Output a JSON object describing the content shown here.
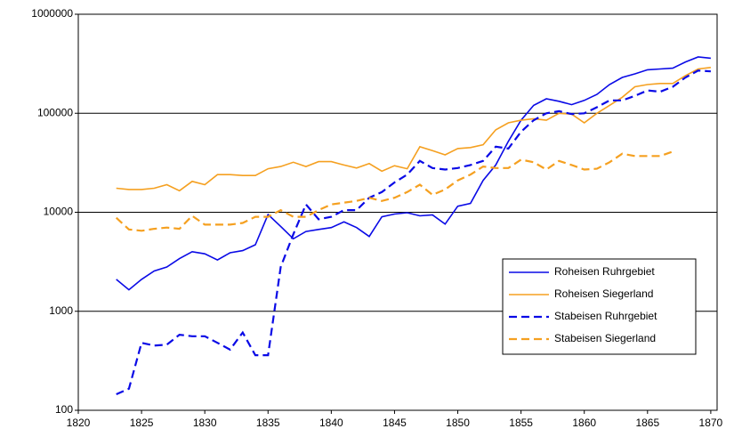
{
  "chart_data": {
    "type": "line",
    "x": [
      1823,
      1824,
      1825,
      1826,
      1827,
      1828,
      1829,
      1830,
      1831,
      1832,
      1833,
      1834,
      1835,
      1836,
      1837,
      1838,
      1839,
      1840,
      1841,
      1842,
      1843,
      1844,
      1845,
      1846,
      1847,
      1848,
      1849,
      1850,
      1851,
      1852,
      1853,
      1854,
      1855,
      1856,
      1857,
      1858,
      1859,
      1860,
      1861,
      1862,
      1863,
      1864,
      1865,
      1866,
      1867,
      1868,
      1869,
      1870
    ],
    "series": [
      {
        "name": "Roheisen Ruhrgebiet",
        "color": "#0a0ae6",
        "dashed": false,
        "values": [
          2100,
          1650,
          2100,
          2550,
          2800,
          3400,
          4000,
          3800,
          3300,
          3900,
          4100,
          4700,
          9500,
          7200,
          5400,
          6400,
          6700,
          7000,
          8000,
          7000,
          5700,
          9000,
          9600,
          9900,
          9200,
          9400,
          7600,
          11500,
          12300,
          21000,
          30000,
          52000,
          85000,
          120000,
          140000,
          132000,
          122000,
          135000,
          155000,
          195000,
          230000,
          250000,
          275000,
          280000,
          285000,
          330000,
          370000,
          360000
        ]
      },
      {
        "name": "Roheisen Siegerland",
        "color": "#f5a020",
        "dashed": false,
        "values": [
          17500,
          17000,
          17000,
          17500,
          19000,
          16500,
          20500,
          19000,
          24000,
          24000,
          23500,
          23500,
          27500,
          29000,
          32000,
          29000,
          32500,
          32500,
          30000,
          28000,
          31000,
          26000,
          29500,
          27500,
          46000,
          42000,
          38000,
          44000,
          45000,
          48000,
          68000,
          80000,
          85000,
          88000,
          85000,
          100000,
          98000,
          80000,
          100000,
          120000,
          145000,
          185000,
          195000,
          200000,
          200000,
          240000,
          280000,
          290000
        ]
      },
      {
        "name": "Stabeisen Ruhrgebiet",
        "color": "#0a0ae6",
        "dashed": true,
        "values": [
          145,
          165,
          480,
          450,
          460,
          580,
          560,
          560,
          480,
          410,
          610,
          360,
          360,
          2800,
          6000,
          12000,
          8500,
          9000,
          10500,
          10500,
          14000,
          16000,
          20000,
          24000,
          33000,
          28000,
          27000,
          28000,
          30000,
          33000,
          46000,
          44000,
          65000,
          85000,
          100000,
          105000,
          98000,
          100000,
          115000,
          135000,
          135000,
          150000,
          170000,
          165000,
          185000,
          230000,
          270000,
          265000
        ]
      },
      {
        "name": "Stabeisen Siegerland",
        "color": "#f5a020",
        "dashed": true,
        "values": [
          8800,
          6700,
          6500,
          6800,
          7000,
          6800,
          9200,
          7500,
          7500,
          7500,
          7800,
          9000,
          9000,
          10500,
          9000,
          9000,
          10500,
          12000,
          12500,
          13000,
          14000,
          13000,
          14000,
          16000,
          19000,
          15000,
          17000,
          21000,
          24000,
          29000,
          28000,
          28000,
          34000,
          32000,
          27000,
          33000,
          30000,
          27000,
          27500,
          32000,
          39000,
          37000,
          37000,
          37000,
          41000,
          null,
          null,
          null
        ]
      }
    ],
    "xlim": [
      1820,
      1870.5
    ],
    "xticks": [
      1820,
      1825,
      1830,
      1835,
      1840,
      1845,
      1850,
      1855,
      1860,
      1865,
      1870
    ],
    "ylim": [
      100,
      1000000
    ],
    "yticks": [
      100,
      1000,
      10000,
      100000,
      1000000
    ],
    "log_y": true,
    "grid": true,
    "legend": "lower-right"
  }
}
